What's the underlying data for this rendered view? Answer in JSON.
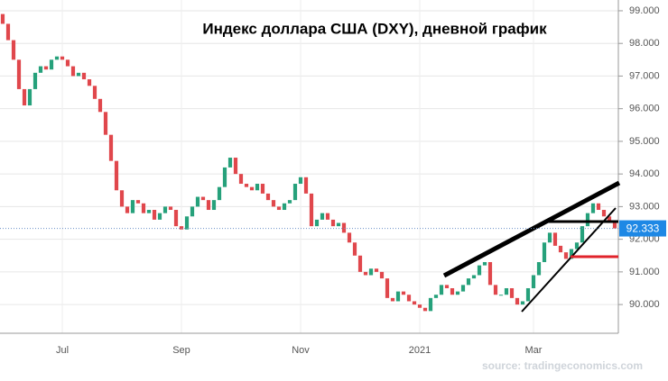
{
  "chart_data": {
    "type": "candlestick",
    "title": "Индекс доллара США (DXY), дневной график",
    "source": "source: tradingeconomics.com",
    "categories": [
      null,
      null,
      null,
      null,
      null,
      null,
      null,
      null,
      null,
      null,
      null,
      "Jul",
      null,
      null,
      null,
      null,
      null,
      null,
      null,
      null,
      null,
      null,
      null,
      null,
      null,
      null,
      null,
      null,
      null,
      null,
      null,
      null,
      null,
      "Sep",
      null,
      null,
      null,
      null,
      null,
      null,
      null,
      null,
      null,
      null,
      null,
      null,
      null,
      null,
      null,
      null,
      null,
      null,
      null,
      null,
      null,
      "Nov",
      null,
      null,
      null,
      null,
      null,
      null,
      null,
      null,
      null,
      null,
      null,
      null,
      null,
      null,
      null,
      null,
      null,
      null,
      null,
      null,
      null,
      "2021",
      null,
      null,
      null,
      null,
      null,
      null,
      null,
      null,
      null,
      null,
      null,
      null,
      null,
      null,
      null,
      null,
      null,
      null,
      null,
      null,
      "Mar",
      null,
      null,
      null,
      null,
      null,
      null,
      null,
      null,
      null,
      null,
      null,
      null,
      null,
      null,
      null
    ],
    "open": [
      98.9,
      98.6,
      98.1,
      97.5,
      96.6,
      96.1,
      96.6,
      97.1,
      97.3,
      97.2,
      97.5,
      97.6,
      97.5,
      97.3,
      97.0,
      97.1,
      96.9,
      96.7,
      96.3,
      95.9,
      95.2,
      94.4,
      93.5,
      93.0,
      92.8,
      93.2,
      93.1,
      92.8,
      92.9,
      92.6,
      92.8,
      93.0,
      92.9,
      92.4,
      92.3,
      92.7,
      93.0,
      93.3,
      93.2,
      92.9,
      93.2,
      93.6,
      94.2,
      94.5,
      94.0,
      93.7,
      93.6,
      93.5,
      93.7,
      93.4,
      93.2,
      93.0,
      92.9,
      93.1,
      93.2,
      93.7,
      93.9,
      93.4,
      92.4,
      92.6,
      92.8,
      92.6,
      92.4,
      92.5,
      92.2,
      91.9,
      91.5,
      91.0,
      90.9,
      91.1,
      91.0,
      90.8,
      90.2,
      90.1,
      90.4,
      90.3,
      90.1,
      90.0,
      89.9,
      89.8,
      90.2,
      90.3,
      90.6,
      90.5,
      90.3,
      90.4,
      90.6,
      90.8,
      90.9,
      91.2,
      91.3,
      90.6,
      90.3,
      90.3,
      90.5,
      90.2,
      90.0,
      90.1,
      90.5,
      90.9,
      91.3,
      91.9,
      92.2,
      91.8,
      91.6,
      91.4,
      91.7,
      91.9,
      92.4,
      92.8,
      93.1,
      92.9,
      92.7,
      92.5
    ],
    "close": [
      98.6,
      98.1,
      97.5,
      96.6,
      96.1,
      96.6,
      97.1,
      97.3,
      97.2,
      97.5,
      97.6,
      97.5,
      97.3,
      97.0,
      97.1,
      96.9,
      96.7,
      96.3,
      95.9,
      95.2,
      94.4,
      93.5,
      93.0,
      92.8,
      93.2,
      93.1,
      92.8,
      92.9,
      92.6,
      92.8,
      93.0,
      92.9,
      92.4,
      92.3,
      92.7,
      93.0,
      93.3,
      93.2,
      92.9,
      93.2,
      93.6,
      94.2,
      94.5,
      94.0,
      93.7,
      93.6,
      93.5,
      93.7,
      93.4,
      93.2,
      93.0,
      92.9,
      93.1,
      93.2,
      93.7,
      93.9,
      93.4,
      92.4,
      92.6,
      92.8,
      92.6,
      92.4,
      92.5,
      92.2,
      91.9,
      91.5,
      91.0,
      90.9,
      91.1,
      91.0,
      90.8,
      90.2,
      90.1,
      90.4,
      90.3,
      90.1,
      90.0,
      89.9,
      89.8,
      90.2,
      90.3,
      90.6,
      90.5,
      90.3,
      90.4,
      90.6,
      90.8,
      90.9,
      91.2,
      91.3,
      90.6,
      90.3,
      90.3,
      90.5,
      90.2,
      90.0,
      90.1,
      90.5,
      90.9,
      91.3,
      91.9,
      92.2,
      91.8,
      91.6,
      91.4,
      91.7,
      91.9,
      92.4,
      92.8,
      93.1,
      92.9,
      92.7,
      92.5,
      92.333
    ],
    "up_color": "#26a17b",
    "down_color": "#e0474c",
    "ylim": [
      89.12,
      99.33
    ],
    "yticks": [
      {
        "value": 90,
        "label": "90.000"
      },
      {
        "value": 91,
        "label": "91.000"
      },
      {
        "value": 92,
        "label": "92.000"
      },
      {
        "value": 93,
        "label": "93.000"
      },
      {
        "value": 94,
        "label": "94.000"
      },
      {
        "value": 95,
        "label": "95.000"
      },
      {
        "value": 96,
        "label": "96.000"
      },
      {
        "value": 97,
        "label": "97.000"
      },
      {
        "value": 98,
        "label": "98.000"
      },
      {
        "value": 99,
        "label": "99.000"
      }
    ],
    "grid": true
  }
}
